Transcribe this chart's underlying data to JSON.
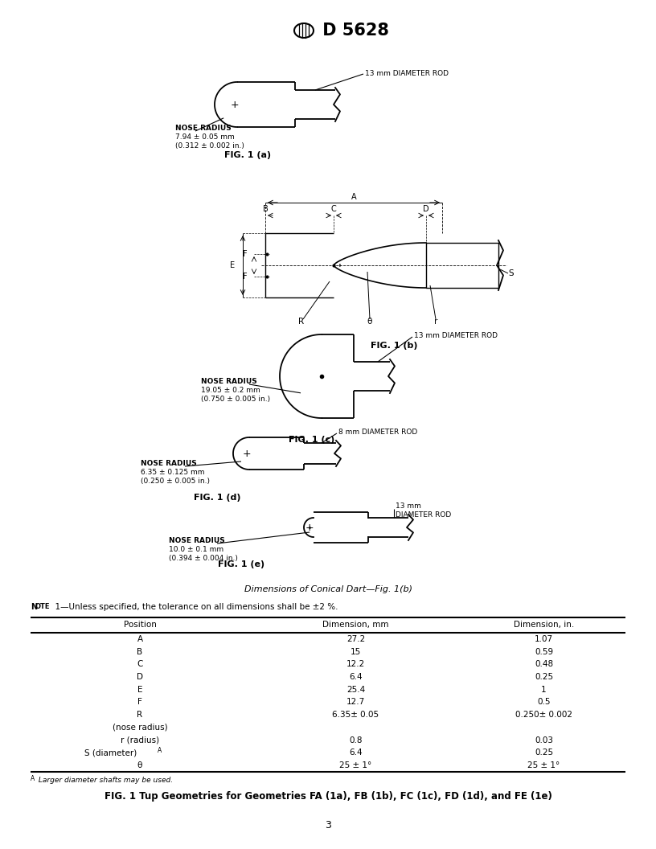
{
  "title": "D 5628",
  "page_number": "3",
  "bg_color": "#ffffff",
  "line_color": "#000000",
  "fig1a_label": "FIG. 1 (a)",
  "fig1a_nose_radius_line1": "NOSE RADIUS",
  "fig1a_nose_radius_line2": "7.94 ± 0.05 mm",
  "fig1a_nose_radius_line3": "(0.312 ± 0.002 in.)",
  "fig1a_rod_label": "13 mm DIAMETER ROD",
  "fig1b_label": "FIG. 1 (b)",
  "fig1c_label": "FIG. 1 (c)",
  "fig1c_nose_radius_line1": "NOSE RADIUS",
  "fig1c_nose_radius_line2": "19.05 ± 0.2 mm",
  "fig1c_nose_radius_line3": "(0.750 ± 0.005 in.)",
  "fig1c_rod_label": "13 mm DIAMETER ROD",
  "fig1d_label": "FIG. 1 (d)",
  "fig1d_nose_radius_line1": "NOSE RADIUS",
  "fig1d_nose_radius_line2": "6.35 ± 0.125 mm",
  "fig1d_nose_radius_line3": "(0.250 ± 0.005 in.)",
  "fig1d_rod_label": "8 mm DIAMETER ROD",
  "fig1e_label": "FIG. 1 (e)",
  "fig1e_nose_radius_line1": "NOSE RADIUS",
  "fig1e_nose_radius_line2": "10.0 ± 0.1 mm",
  "fig1e_nose_radius_line3": "(0.394 ± 0.004 in.)",
  "fig1e_rod_label_line1": "13 mm",
  "fig1e_rod_label_line2": "DIAMETER ROD",
  "dimensions_label": "Dimensions of Conical Dart—Fig. 1(b)",
  "note_text": "NOTE  1—Unless specified, the tolerance on all dimensions shall be ±2 %.",
  "table_headers": [
    "Position",
    "Dimension, mm",
    "Dimension, in."
  ],
  "table_rows": [
    [
      "A",
      "27.2",
      "1.07"
    ],
    [
      "B",
      "15",
      "0.59"
    ],
    [
      "C",
      "12.2",
      "0.48"
    ],
    [
      "D",
      "6.4",
      "0.25"
    ],
    [
      "E",
      "25.4",
      "1"
    ],
    [
      "F",
      "12.7",
      "0.5"
    ],
    [
      "R",
      "6.35± 0.05",
      "0.250± 0.002"
    ],
    [
      "(nose radius)",
      "",
      ""
    ],
    [
      "r (radius)",
      "0.8",
      "0.03"
    ],
    [
      "S (diameter)A",
      "6.4",
      "0.25"
    ],
    [
      "θ",
      "25 ± 1°",
      "25 ± 1°"
    ]
  ],
  "footnote": "A Larger diameter shafts may be used.",
  "fig_caption": "FIG. 1 Tup Geometries for Geometries FA (1a), FB (1b), FC (1c), FD (1d), and FE (1e)"
}
